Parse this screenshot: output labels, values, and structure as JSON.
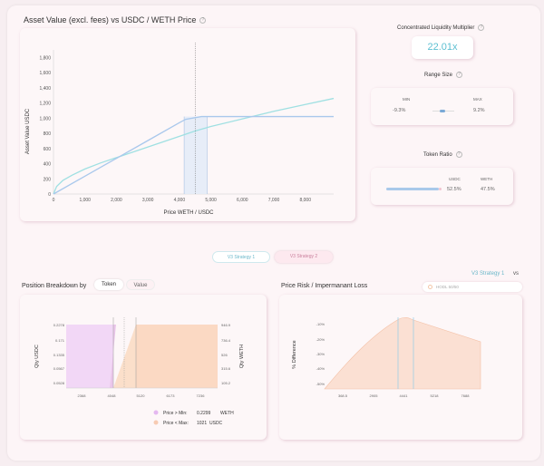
{
  "main_chart": {
    "title": "Asset Value (excl. fees) vs USDC / WETH Price",
    "xlabel": "Price WETH / USDC",
    "ylabel": "Asset Value USDC",
    "yticks": [
      "0",
      "200",
      "400",
      "600",
      "800",
      "1,000",
      "1,200",
      "1,400",
      "1,600",
      "1,800"
    ],
    "xticks": [
      "0",
      "1,000",
      "2,000",
      "3,000",
      "4,000",
      "5,000",
      "6,000",
      "7,000",
      "8,000"
    ]
  },
  "multiplier": {
    "title": "Concentrated Liquidity Multiplier",
    "value": "22.01x"
  },
  "range_size": {
    "title": "Range Size",
    "min_label": "MIN",
    "max_label": "MAX",
    "min_value": "-9.3%",
    "max_value": "9.2%"
  },
  "token_ratio": {
    "title": "Token Ratio",
    "token1": "USDC",
    "token2": "WETH",
    "pct1": "52.5%",
    "pct2": "47.5%"
  },
  "strategy_tabs": {
    "tab1": "V3 Strategy 1",
    "tab2": "V3 Strategy 2"
  },
  "compare": {
    "strategy": "V3 Strategy 1",
    "vs": "vs",
    "hodl": "HODL 50/50"
  },
  "breakdown": {
    "title": "Position Breakdown by",
    "toggle_token": "Token",
    "toggle_value": "Value",
    "ylabel_left": "Qty USDC",
    "ylabel_right": "Qty WETH",
    "left_ticks": [
      "0.2278",
      "0.171",
      "0.1335",
      "0.0567",
      "0.0528"
    ],
    "right_ticks": [
      "946.9",
      "736.4",
      "526",
      "315.6",
      "105.2"
    ],
    "xticks": [
      "2368",
      "4048",
      "5120",
      "6173",
      "7236"
    ],
    "legend1_label": "Price > Min:",
    "legend1_value": "0.2299",
    "legend1_unit": "WETH",
    "legend2_label": "Price < Max:",
    "legend2_value": "1021",
    "legend2_unit": "USDC"
  },
  "risk": {
    "title": "Price Risk / Impermanant Loss",
    "ylabel": "% Difference",
    "yticks": [
      "-10%",
      "-20%",
      "-30%",
      "-40%",
      "-50%"
    ],
    "xticks": [
      "368.5",
      "2905",
      "4441",
      "5218",
      "7688"
    ]
  },
  "chart_data": [
    {
      "type": "line",
      "title": "Asset Value (excl. fees) vs USDC / WETH Price",
      "xlabel": "Price WETH / USDC",
      "ylabel": "Asset Value USDC",
      "xlim": [
        0,
        8900
      ],
      "ylim": [
        0,
        1900
      ],
      "series": [
        {
          "x": [
            0,
            100,
            300,
            600,
            1000,
            1500,
            2000,
            3000,
            4000,
            4500,
            5000,
            6000,
            7000,
            8000,
            8900
          ],
          "y": [
            0,
            100,
            180,
            250,
            330,
            410,
            480,
            620,
            760,
            830,
            890,
            990,
            1090,
            1180,
            1260
          ]
        },
        {
          "x": [
            0,
            1000,
            2000,
            3000,
            4000,
            4200,
            4700,
            6000,
            7000,
            8000,
            8900
          ],
          "y": [
            0,
            235,
            470,
            705,
            940,
            985,
            1021,
            1021,
            1021,
            1021,
            1021
          ]
        }
      ]
    },
    {
      "type": "area",
      "title": "Price Risk / Impermanant Loss",
      "ylabel": "% Difference",
      "xticks": [
        "368.5",
        "2905",
        "4441",
        "5218",
        "7688"
      ]
    }
  ]
}
